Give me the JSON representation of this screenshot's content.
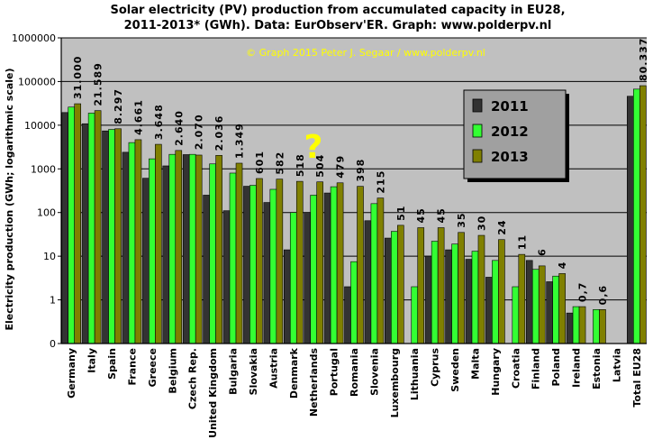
{
  "chart_data": {
    "type": "bar",
    "title_line1": "Solar electricity (PV) production from accumulated capacity in EU28,",
    "title_line2": "2011-2013*  (GWh).  Data: EurObserv'ER.  Graph: www.polderpv.nl",
    "credit": "© Graph 2015 Peter J. Segaar / www.polderpv.nl",
    "ylabel": "Electricity production (GWh; logarithmic scale)",
    "yscale": "log",
    "yticks": [
      "0",
      "1",
      "10",
      "100",
      "1000",
      "10000",
      "100000",
      "1000000"
    ],
    "annotation": "?",
    "categories": [
      "Germany",
      "Italy",
      "Spain",
      "France",
      "Greece",
      "Belgium",
      "Czech Rep.",
      "United Kingdom",
      "Bulgaria",
      "Slovakia",
      "Austria",
      "Denmark",
      "Netherlands",
      "Portugal",
      "Romania",
      "Slovenia",
      "Luxembourg",
      "Lithuania",
      "Cyprus",
      "Sweden",
      "Malta",
      "Hungary",
      "Croatia",
      "Finland",
      "Poland",
      "Ireland",
      "Estonia",
      "Latvia",
      "Total EU28"
    ],
    "data_labels": [
      "31.000",
      "21.589",
      "8.297",
      "4.661",
      "3.648",
      "2.640",
      "2.070",
      "2.036",
      "1.349",
      "601",
      "582",
      "518",
      "504",
      "479",
      "398",
      "215",
      "51",
      "45",
      "45",
      "35",
      "30",
      "24",
      "11",
      "6",
      "4",
      "0,7",
      "0,6",
      "",
      "80.337"
    ],
    "series": [
      {
        "name": "2011",
        "color": "#333333",
        "values": [
          19500,
          10800,
          7400,
          2400,
          610,
          1170,
          2120,
          250,
          110,
          400,
          170,
          14,
          100,
          280,
          2,
          65,
          26,
          0,
          10,
          14,
          8.5,
          3.3,
          0,
          8,
          2.6,
          0.5,
          0,
          0,
          46000
        ]
      },
      {
        "name": "2012",
        "color": "#33ff33",
        "values": [
          26000,
          18900,
          8000,
          4000,
          1700,
          2150,
          2150,
          1300,
          800,
          420,
          340,
          100,
          250,
          390,
          7.5,
          160,
          37,
          2,
          22,
          19,
          13,
          8,
          2,
          5,
          3.5,
          0.7,
          0.6,
          0,
          67000
        ]
      },
      {
        "name": "2013",
        "color": "#808000",
        "values": [
          31000,
          21589,
          8297,
          4661,
          3648,
          2640,
          2070,
          2036,
          1349,
          601,
          582,
          518,
          504,
          479,
          398,
          215,
          51,
          45,
          45,
          35,
          30,
          24,
          11,
          6,
          4,
          0.7,
          0.6,
          0,
          80337
        ]
      }
    ],
    "legend_position": "top-right",
    "grid": true
  },
  "colors": {
    "plot_background": "#c0c0c0",
    "page_background": "#ffffff",
    "legend_background": "#a0a0a0",
    "credit_text": "#ffff00",
    "annotation": "#ffff00"
  }
}
